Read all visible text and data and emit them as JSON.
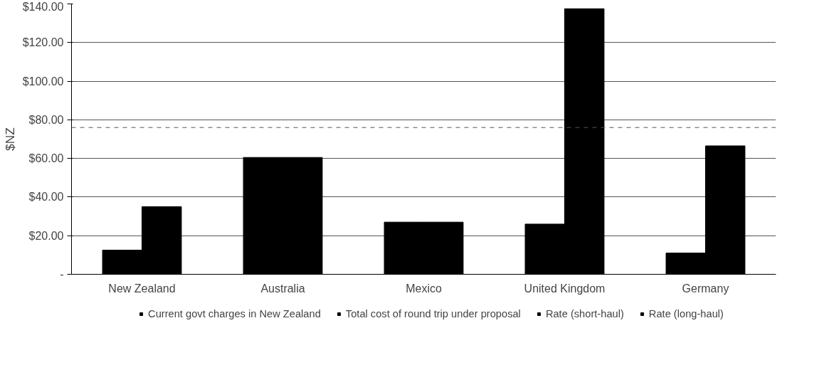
{
  "chart_data": {
    "type": "bar",
    "ylabel": "$NZ",
    "categories": [
      "New Zealand",
      "Australia",
      "Mexico",
      "United Kingdom",
      "Germany"
    ],
    "series": [
      {
        "name": "Current govt charges in New Zealand",
        "color": "#000000",
        "values": [
          12.5,
          null,
          null,
          null,
          null
        ]
      },
      {
        "name": "Total cost of round trip under proposal",
        "color": "#000000",
        "values": [
          35,
          null,
          null,
          null,
          null
        ]
      },
      {
        "name": "Rate (short-haul)",
        "color": "#000000",
        "values": [
          null,
          60.5,
          27,
          26,
          11
        ]
      },
      {
        "name": "Rate (long-haul)",
        "color": "#000000",
        "values": [
          null,
          60.5,
          27,
          137.5,
          66.5
        ]
      }
    ],
    "ylim": [
      0,
      140
    ],
    "yticks": [
      {
        "value": 0,
        "label": "-"
      },
      {
        "value": 20,
        "label": "$20.00"
      },
      {
        "value": 40,
        "label": "$40.00"
      },
      {
        "value": 60,
        "label": "$60.00"
      },
      {
        "value": 80,
        "label": "$80.00"
      },
      {
        "value": 100,
        "label": "$100.00"
      },
      {
        "value": 120,
        "label": "$120.00"
      },
      {
        "value": 140,
        "label": "$140.00"
      }
    ],
    "ref_lines": [
      {
        "axis": "y",
        "value": 76,
        "label": null,
        "color": "#555555",
        "line_style": "dashed"
      }
    ],
    "grid": "y",
    "legend": "bottom"
  }
}
